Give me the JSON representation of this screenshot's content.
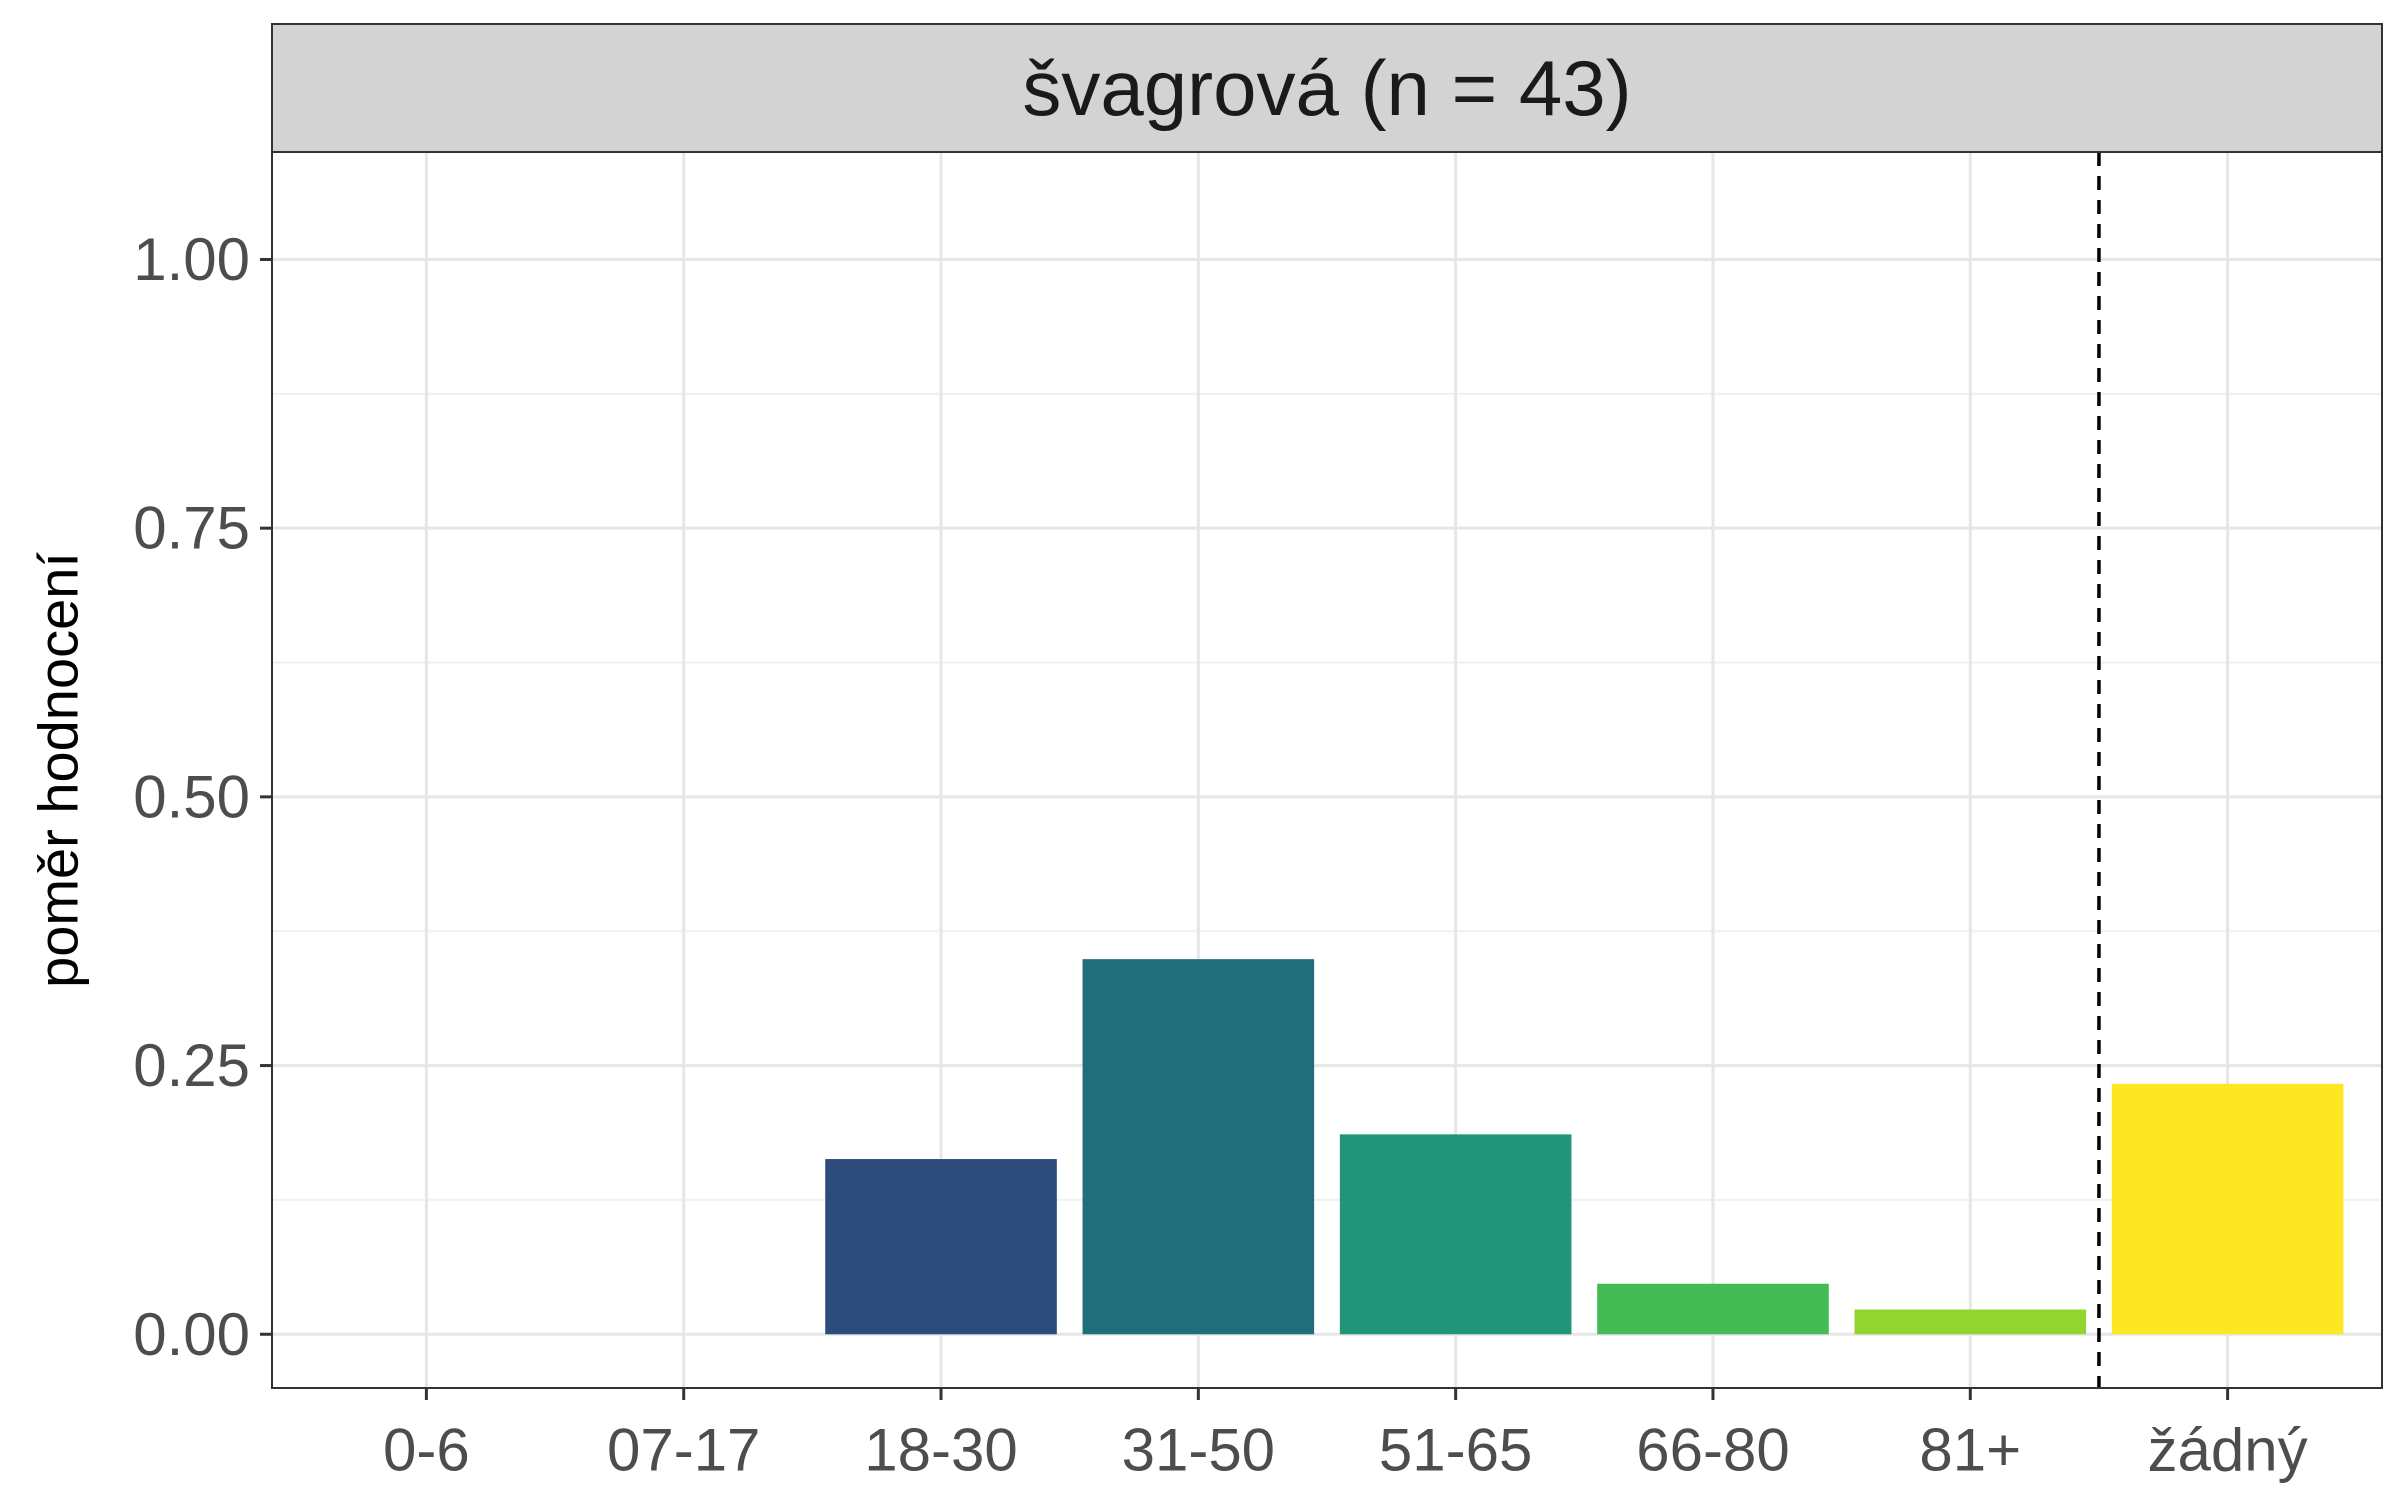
{
  "chart_data": {
    "type": "bar",
    "facet_title": "švagrová (n = 43)",
    "ylabel": "poměr hodnocení",
    "xlabel": "",
    "categories": [
      "0-6",
      "07-17",
      "18-30",
      "31-50",
      "51-65",
      "66-80",
      "81+",
      "žádný"
    ],
    "values": [
      0.0,
      0.0,
      0.163,
      0.349,
      0.186,
      0.047,
      0.023,
      0.233
    ],
    "colors": [
      "#440154",
      "#46337E",
      "#2C4A7C",
      "#206E7B",
      "#219479",
      "#44BB55",
      "#93D52F",
      "#FDE622"
    ],
    "ylim": [
      -0.05,
      1.1
    ],
    "yticks": [
      0.0,
      0.25,
      0.5,
      0.75,
      1.0
    ],
    "ytick_labels": [
      "0.00",
      "0.25",
      "0.50",
      "0.75",
      "1.00"
    ],
    "separator_after_category": "81+",
    "grid": true,
    "legend": "none"
  }
}
